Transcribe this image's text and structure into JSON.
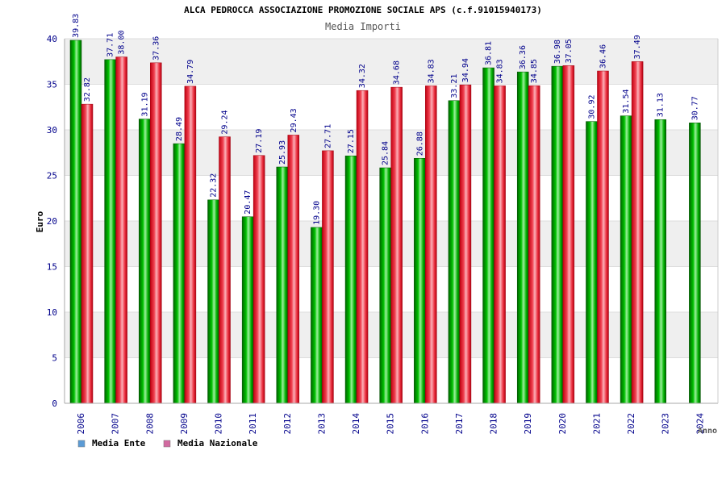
{
  "chart_data": {
    "type": "bar",
    "title": "ALCA PEDROCCA ASSOCIAZIONE PROMOZIONE SOCIALE APS (c.f.91015940173)",
    "subtitle": "Media Importi",
    "ylabel": "Euro",
    "xlabel": "Anno",
    "ylim": [
      0,
      40
    ],
    "yticks": [
      0,
      5,
      10,
      15,
      20,
      25,
      30,
      35,
      40
    ],
    "categories": [
      "2006",
      "2007",
      "2008",
      "2009",
      "2010",
      "2011",
      "2012",
      "2013",
      "2014",
      "2015",
      "2016",
      "2017",
      "2018",
      "2019",
      "2020",
      "2021",
      "2022",
      "2023",
      "2024"
    ],
    "series": [
      {
        "name": "Media Ente",
        "color": "#00aa00",
        "values": [
          39.83,
          37.71,
          31.19,
          28.49,
          22.32,
          20.47,
          25.93,
          19.3,
          27.15,
          25.84,
          26.88,
          33.21,
          36.81,
          36.36,
          36.98,
          30.92,
          31.54,
          31.13,
          30.77
        ],
        "labels": [
          "39.83",
          "37.71",
          "31.19",
          "28.49",
          "22.32",
          "20.47",
          "25.93",
          "19.30",
          "27.15",
          "25.84",
          "26.88",
          "33.21",
          "36.81",
          "36.36",
          "36.98",
          "30.92",
          "31.54",
          "31.13",
          "30.77"
        ]
      },
      {
        "name": "Media Nazionale",
        "color": "#e8202a",
        "values": [
          32.82,
          38.0,
          37.36,
          34.79,
          29.24,
          27.19,
          29.43,
          27.71,
          34.32,
          34.68,
          34.83,
          34.94,
          34.83,
          34.85,
          37.05,
          36.46,
          37.49,
          null,
          null
        ],
        "labels": [
          "32.82",
          "38.00",
          "37.36",
          "34.79",
          "29.24",
          "27.19",
          "29.43",
          "27.71",
          "34.32",
          "34.68",
          "34.83",
          "34.94",
          "34.83",
          "34.85",
          "37.05",
          "36.46",
          "37.49",
          "",
          ""
        ]
      }
    ],
    "legend": {
      "placement": "bottom-left",
      "items": [
        {
          "label": "Media Ente",
          "color": "#5b9bd5"
        },
        {
          "label": "Media Nazionale",
          "color": "#d26aa0"
        }
      ]
    },
    "grid": true,
    "colors": {
      "title": "#000000",
      "subtitle": "#555555",
      "axis_labels": "#00008b",
      "data_labels": "#00008b",
      "band": "#efefef"
    }
  }
}
